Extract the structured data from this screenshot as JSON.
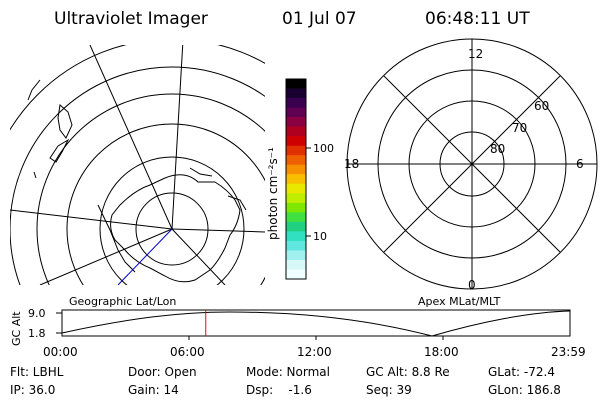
{
  "header": {
    "title": "Ultraviolet Imager",
    "date": "01 Jul 07",
    "time": "06:48:11 UT"
  },
  "colorbar": {
    "label": "photon cm⁻²s⁻¹",
    "tick_100": "100",
    "tick_10": "10",
    "colors": [
      "#000000",
      "#1a0030",
      "#3a0050",
      "#600050",
      "#8a0040",
      "#b00020",
      "#d00000",
      "#e03000",
      "#ee6000",
      "#f59000",
      "#f8c000",
      "#e8e800",
      "#c0ee00",
      "#80e800",
      "#40e040",
      "#20d080",
      "#30e0c0",
      "#60e8e0",
      "#a0f0f0",
      "#d8f8f8",
      "#f0ffff"
    ]
  },
  "left_map": {
    "caption": "Geographic Lat/Lon"
  },
  "right_map": {
    "caption": "Apex MLat/MLT",
    "labels": {
      "top": "12",
      "left": "18",
      "right": "6",
      "bottom": "0",
      "lat60": "60",
      "lat70": "70",
      "lat80": "80"
    }
  },
  "altitude_plot": {
    "ylabel": "GC Alt",
    "ytick_top": "9.0",
    "ytick_bottom": "1.8",
    "xticks": [
      "00:00",
      "06:00",
      "12:00",
      "18:00",
      "23:59"
    ],
    "current_time_fraction": 0.283,
    "marker_color": "#ff0000"
  },
  "info": {
    "filter": "Flt: LBHL",
    "ip": "IP: 36.0",
    "door": "Door: Open",
    "gain": "Gain: 14",
    "mode": "Mode: Normal",
    "dsp": "Dsp:    -1.6",
    "gcalt": "GC Alt: 8.8 Re",
    "seq": "Seq: 39",
    "glat": "GLat: -72.4",
    "glon": "GLon: 186.8"
  }
}
